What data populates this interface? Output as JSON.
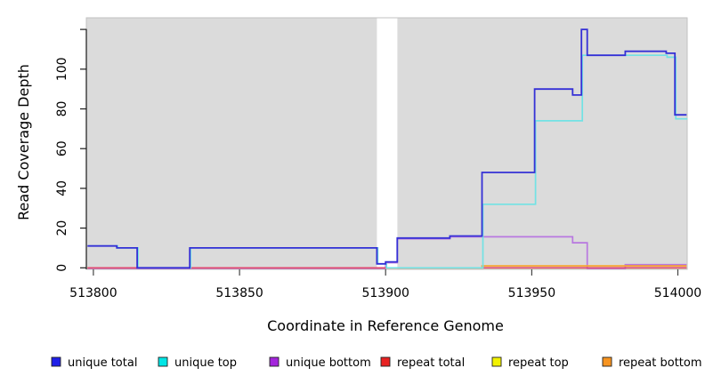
{
  "chart_data": {
    "type": "line",
    "subtype": "step",
    "title": "",
    "xlabel": "Coordinate in Reference Genome",
    "ylabel": "Read Coverage Depth",
    "xlim": [
      513798,
      514003
    ],
    "ylim": [
      0,
      126
    ],
    "x_ticks": [
      513800,
      513850,
      513900,
      513950,
      514000
    ],
    "y_ticks": [
      {
        "value": 0,
        "label": "0"
      },
      {
        "value": 20,
        "label": "20"
      },
      {
        "value": 40,
        "label": "40"
      },
      {
        "value": 60,
        "label": "60"
      },
      {
        "value": 80,
        "label": "80"
      },
      {
        "value": 100,
        "label": "100"
      },
      {
        "value": 120,
        "label": ""
      }
    ],
    "plot_background": "#DBDBDB",
    "plot_border_color": "#C2C2C2",
    "gap_region": {
      "from": 513897,
      "to": 513904
    },
    "legend_position": "bottom",
    "series": [
      {
        "name": "unique total",
        "legend_color": "#1F1FE8",
        "line_color": "#3530D6",
        "steps": [
          [
            513798,
            11
          ],
          [
            513808,
            10
          ],
          [
            513815,
            0
          ],
          [
            513833,
            10
          ],
          [
            513897,
            2
          ],
          [
            513900,
            3
          ],
          [
            513904,
            15
          ],
          [
            513922,
            16
          ],
          [
            513933,
            48
          ],
          [
            513951,
            90
          ],
          [
            513964,
            87
          ],
          [
            513967,
            120
          ],
          [
            513969,
            107
          ],
          [
            513982,
            109
          ],
          [
            513996,
            108
          ],
          [
            513999,
            77
          ]
        ]
      },
      {
        "name": "unique top",
        "legend_color": "#00E5E5",
        "line_color": "#72E2E4",
        "steps": [
          [
            513798,
            11
          ],
          [
            513808,
            10
          ],
          [
            513815,
            0
          ],
          [
            513833,
            10
          ],
          [
            513897,
            2
          ],
          [
            513900,
            0
          ],
          [
            513933,
            32
          ],
          [
            513951,
            74
          ],
          [
            513967,
            107
          ],
          [
            513996,
            106
          ],
          [
            513999,
            75
          ]
        ]
      },
      {
        "name": "unique bottom",
        "legend_color": "#A425DC",
        "line_color": "#B878E0",
        "steps": [
          [
            513798,
            0
          ],
          [
            513900,
            3
          ],
          [
            513904,
            15
          ],
          [
            513922,
            16
          ],
          [
            513964,
            13
          ],
          [
            513969,
            0
          ],
          [
            513982,
            2
          ]
        ]
      },
      {
        "name": "repeat total",
        "legend_color": "#E82222",
        "line_color": "#E04A70",
        "steps": [
          [
            513798,
            0
          ]
        ]
      },
      {
        "name": "repeat top",
        "legend_color": "#F2F200",
        "line_color": "#EEE840",
        "steps": [
          [
            513798,
            0
          ]
        ]
      },
      {
        "name": "repeat bottom",
        "legend_color": "#F79420",
        "line_color": "#F8A430",
        "steps": [
          [
            513798,
            0
          ],
          [
            513933,
            1
          ]
        ]
      }
    ],
    "draw_order": [
      "unique bottom",
      "repeat bottom",
      "repeat top",
      "repeat total",
      "unique top",
      "unique total"
    ]
  }
}
